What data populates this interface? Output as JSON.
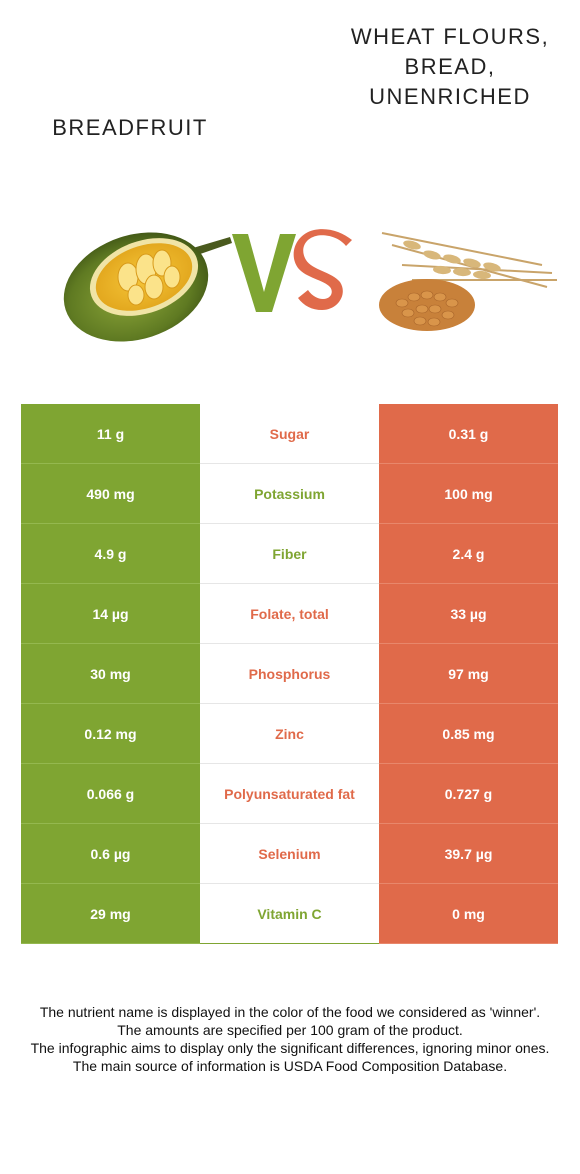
{
  "left_food": {
    "name": "Breadfruit",
    "color": "#7fa532",
    "icon": "breadfruit-image"
  },
  "right_food": {
    "name": "Wheat flours, bread, unenriched",
    "color": "#e06a4a",
    "icon": "wheat-grains-image"
  },
  "vs": {
    "v": "V",
    "s": "S"
  },
  "rows": [
    {
      "nutrient": "Sugar",
      "left": "11 g",
      "right": "0.31 g",
      "winner": "right"
    },
    {
      "nutrient": "Potassium",
      "left": "490 mg",
      "right": "100 mg",
      "winner": "left"
    },
    {
      "nutrient": "Fiber",
      "left": "4.9 g",
      "right": "2.4 g",
      "winner": "left"
    },
    {
      "nutrient": "Folate, total",
      "left": "14 µg",
      "right": "33 µg",
      "winner": "right"
    },
    {
      "nutrient": "Phosphorus",
      "left": "30 mg",
      "right": "97 mg",
      "winner": "right"
    },
    {
      "nutrient": "Zinc",
      "left": "0.12 mg",
      "right": "0.85 mg",
      "winner": "right"
    },
    {
      "nutrient": "Polyunsaturated fat",
      "left": "0.066 g",
      "right": "0.727 g",
      "winner": "right"
    },
    {
      "nutrient": "Selenium",
      "left": "0.6 µg",
      "right": "39.7 µg",
      "winner": "right"
    },
    {
      "nutrient": "Vitamin C",
      "left": "29 mg",
      "right": "0 mg",
      "winner": "left"
    }
  ],
  "footer": [
    "The nutrient name is displayed in the color of the food we considered as 'winner'.",
    "The amounts are specified per 100 gram of the product.",
    "The infographic aims to display only the significant differences, ignoring minor ones.",
    "The main source of information is USDA Food Composition Database."
  ]
}
